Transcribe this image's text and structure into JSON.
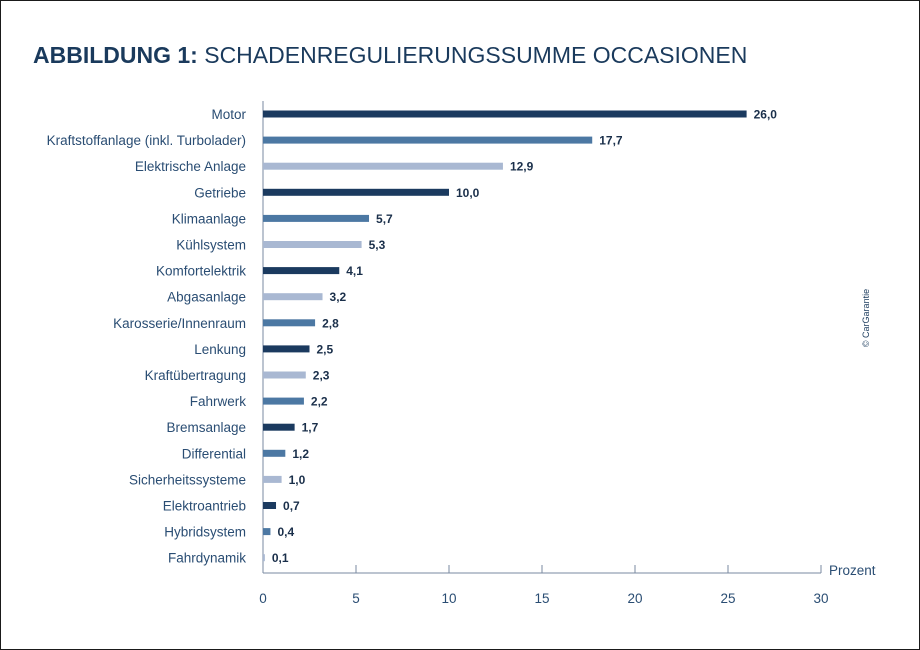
{
  "title": {
    "bold": "ABBILDUNG 1:",
    "rest": " SCHADENREGULIERUNGSSUMME OCCASIONEN"
  },
  "copyright": "© CarGarantie",
  "colors": {
    "dark": "#1b3a5f",
    "mid": "#4c78a3",
    "light": "#a9b8d2",
    "axis": "#7a8aa0",
    "text": "#2a4d73"
  },
  "chart_data": {
    "type": "bar",
    "orientation": "horizontal",
    "categories": [
      "Motor",
      "Kraftstoffanlage (inkl. Turbolader)",
      "Elektrische Anlage",
      "Getriebe",
      "Klimaanlage",
      "Kühlsystem",
      "Komfortelektrik",
      "Abgasanlage",
      "Karosserie/Innenraum",
      "Lenkung",
      "Kraftübertragung",
      "Fahrwerk",
      "Bremsanlage",
      "Differential",
      "Sicherheitssysteme",
      "Elektroantrieb",
      "Hybridsystem",
      "Fahrdynamik"
    ],
    "values": [
      26.0,
      17.7,
      12.9,
      10.0,
      5.7,
      5.3,
      4.1,
      3.2,
      2.8,
      2.5,
      2.3,
      2.2,
      1.7,
      1.2,
      1.0,
      0.7,
      0.4,
      0.1
    ],
    "value_labels": [
      "26,0",
      "17,7",
      "12,9",
      "10,0",
      "5,7",
      "5,3",
      "4,1",
      "3,2",
      "2,8",
      "2,5",
      "2,3",
      "2,2",
      "1,7",
      "1,2",
      "1,0",
      "0,7",
      "0,4",
      "0,1"
    ],
    "bar_colors": [
      "dark",
      "mid",
      "light",
      "dark",
      "mid",
      "light",
      "dark",
      "light",
      "mid",
      "dark",
      "light",
      "mid",
      "dark",
      "mid",
      "light",
      "dark",
      "mid",
      "light"
    ],
    "xticks": [
      0,
      5,
      10,
      15,
      20,
      25,
      30
    ],
    "xlim": [
      0,
      30
    ],
    "xlabel": "Prozent",
    "ylabel": "",
    "grid": false,
    "legend": "none"
  }
}
